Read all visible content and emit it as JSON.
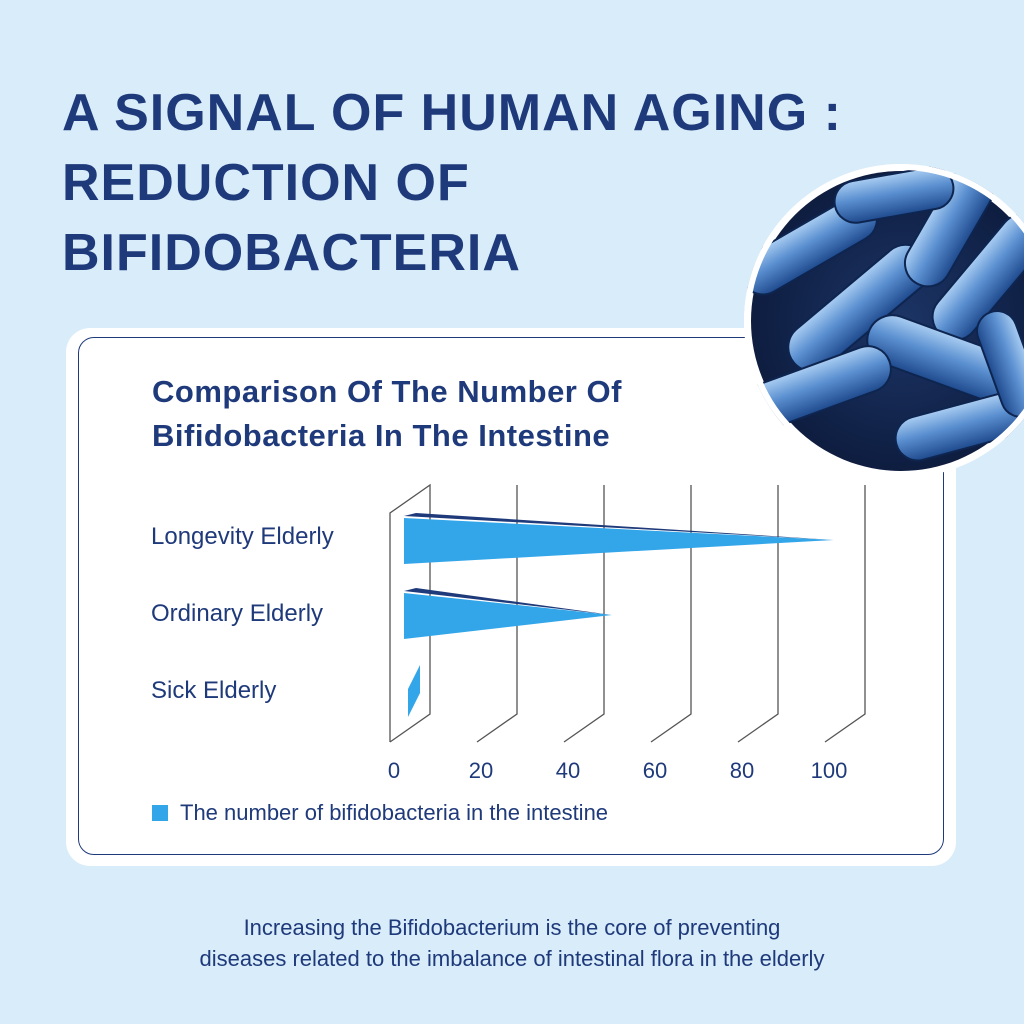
{
  "headline": {
    "line1": "A SIGNAL OF HUMAN AGING :",
    "line2": "REDUCTION OF",
    "line3": "BIFIDOBACTERIA"
  },
  "chart_data": {
    "type": "bar",
    "orientation": "horizontal",
    "title_line1": "Comparison Of The Number Of",
    "title_line2": "Bifidobacteria In The Intestine",
    "categories": [
      "Longevity Elderly",
      "Ordinary Elderly",
      "Sick Elderly"
    ],
    "series": [
      {
        "name": "The number of bifidobacteria in the intestine",
        "values": [
          102,
          51,
          4
        ]
      }
    ],
    "xlim": [
      0,
      100
    ],
    "x_ticks": [
      "0",
      "20",
      "40",
      "60",
      "80",
      "100"
    ],
    "grid": true,
    "legend": "bottom-left",
    "colors": {
      "bar_front": "#33a6ea",
      "bar_top": "#1f3a7a",
      "grid": "#555555"
    }
  },
  "photo": {
    "subject": "bacteria-micrograph"
  },
  "footer": {
    "line1": "Increasing  the Bifidobacterium is the core of preventing",
    "line2": "diseases related to the imbalance of intestinal flora in the elderly"
  },
  "colors": {
    "background": "#d8ecfa",
    "text": "#1f3a7a"
  }
}
